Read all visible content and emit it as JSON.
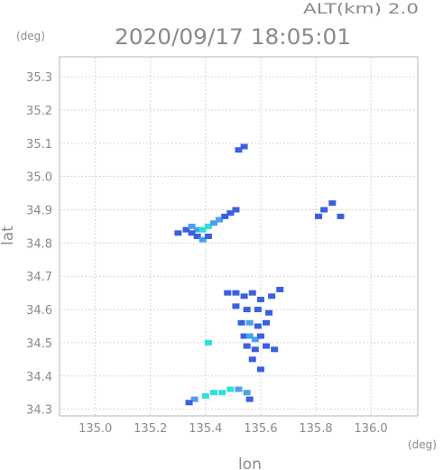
{
  "header": {
    "alt_label": "ALT(km)  2.0",
    "datetime": "2020/09/17 18:05:01"
  },
  "chart_data": {
    "type": "heatmap",
    "xlabel": "lon",
    "ylabel": "lat",
    "x_unit": "(deg)",
    "y_unit": "(deg)",
    "xlim": [
      134.87,
      136.17
    ],
    "ylim": [
      34.28,
      35.36
    ],
    "x_ticks": [
      "135.0",
      "135.2",
      "135.4",
      "135.6",
      "135.8",
      "136.0"
    ],
    "y_ticks": [
      "34.3",
      "34.4",
      "34.5",
      "34.6",
      "34.7",
      "34.8",
      "34.9",
      "35.0",
      "35.1",
      "35.2",
      "35.3"
    ],
    "grid": true,
    "colors": {
      "weak": "#3a5fe0",
      "moderate": "#4aa0f0",
      "strong": "#30e0d8",
      "axis": "#b0b0b0"
    },
    "cells": [
      {
        "lon": 135.52,
        "lat": 35.08,
        "level": "weak"
      },
      {
        "lon": 135.54,
        "lat": 35.09,
        "level": "weak"
      },
      {
        "lon": 135.3,
        "lat": 34.83,
        "level": "weak"
      },
      {
        "lon": 135.33,
        "lat": 34.84,
        "level": "weak"
      },
      {
        "lon": 135.35,
        "lat": 34.85,
        "level": "moderate"
      },
      {
        "lon": 135.37,
        "lat": 34.84,
        "level": "moderate"
      },
      {
        "lon": 135.39,
        "lat": 34.84,
        "level": "strong"
      },
      {
        "lon": 135.41,
        "lat": 34.85,
        "level": "strong"
      },
      {
        "lon": 135.43,
        "lat": 34.86,
        "level": "moderate"
      },
      {
        "lon": 135.45,
        "lat": 34.87,
        "level": "moderate"
      },
      {
        "lon": 135.47,
        "lat": 34.88,
        "level": "weak"
      },
      {
        "lon": 135.49,
        "lat": 34.89,
        "level": "weak"
      },
      {
        "lon": 135.37,
        "lat": 34.82,
        "level": "weak"
      },
      {
        "lon": 135.39,
        "lat": 34.81,
        "level": "moderate"
      },
      {
        "lon": 135.41,
        "lat": 34.82,
        "level": "weak"
      },
      {
        "lon": 135.35,
        "lat": 34.83,
        "level": "weak"
      },
      {
        "lon": 135.51,
        "lat": 34.9,
        "level": "weak"
      },
      {
        "lon": 135.86,
        "lat": 34.92,
        "level": "weak"
      },
      {
        "lon": 135.83,
        "lat": 34.9,
        "level": "weak"
      },
      {
        "lon": 135.81,
        "lat": 34.88,
        "level": "weak"
      },
      {
        "lon": 135.89,
        "lat": 34.88,
        "level": "weak"
      },
      {
        "lon": 135.48,
        "lat": 34.65,
        "level": "weak"
      },
      {
        "lon": 135.51,
        "lat": 34.65,
        "level": "weak"
      },
      {
        "lon": 135.54,
        "lat": 34.64,
        "level": "weak"
      },
      {
        "lon": 135.57,
        "lat": 34.65,
        "level": "weak"
      },
      {
        "lon": 135.6,
        "lat": 34.63,
        "level": "weak"
      },
      {
        "lon": 135.64,
        "lat": 34.64,
        "level": "weak"
      },
      {
        "lon": 135.67,
        "lat": 34.66,
        "level": "weak"
      },
      {
        "lon": 135.51,
        "lat": 34.61,
        "level": "weak"
      },
      {
        "lon": 135.55,
        "lat": 34.6,
        "level": "weak"
      },
      {
        "lon": 135.59,
        "lat": 34.6,
        "level": "weak"
      },
      {
        "lon": 135.63,
        "lat": 34.59,
        "level": "weak"
      },
      {
        "lon": 135.53,
        "lat": 34.56,
        "level": "weak"
      },
      {
        "lon": 135.56,
        "lat": 34.56,
        "level": "moderate"
      },
      {
        "lon": 135.59,
        "lat": 34.55,
        "level": "weak"
      },
      {
        "lon": 135.62,
        "lat": 34.56,
        "level": "weak"
      },
      {
        "lon": 135.54,
        "lat": 34.52,
        "level": "weak"
      },
      {
        "lon": 135.56,
        "lat": 34.52,
        "level": "moderate"
      },
      {
        "lon": 135.58,
        "lat": 34.51,
        "level": "moderate"
      },
      {
        "lon": 135.6,
        "lat": 34.52,
        "level": "weak"
      },
      {
        "lon": 135.55,
        "lat": 34.49,
        "level": "weak"
      },
      {
        "lon": 135.58,
        "lat": 34.48,
        "level": "weak"
      },
      {
        "lon": 135.62,
        "lat": 34.49,
        "level": "weak"
      },
      {
        "lon": 135.65,
        "lat": 34.48,
        "level": "weak"
      },
      {
        "lon": 135.57,
        "lat": 34.45,
        "level": "weak"
      },
      {
        "lon": 135.41,
        "lat": 34.5,
        "level": "strong"
      },
      {
        "lon": 135.6,
        "lat": 34.42,
        "level": "weak"
      },
      {
        "lon": 135.36,
        "lat": 34.33,
        "level": "moderate"
      },
      {
        "lon": 135.4,
        "lat": 34.34,
        "level": "strong"
      },
      {
        "lon": 135.43,
        "lat": 34.35,
        "level": "strong"
      },
      {
        "lon": 135.46,
        "lat": 34.35,
        "level": "strong"
      },
      {
        "lon": 135.49,
        "lat": 34.36,
        "level": "strong"
      },
      {
        "lon": 135.52,
        "lat": 34.36,
        "level": "moderate"
      },
      {
        "lon": 135.55,
        "lat": 34.35,
        "level": "moderate"
      },
      {
        "lon": 135.34,
        "lat": 34.32,
        "level": "weak"
      },
      {
        "lon": 135.56,
        "lat": 34.33,
        "level": "weak"
      }
    ]
  }
}
